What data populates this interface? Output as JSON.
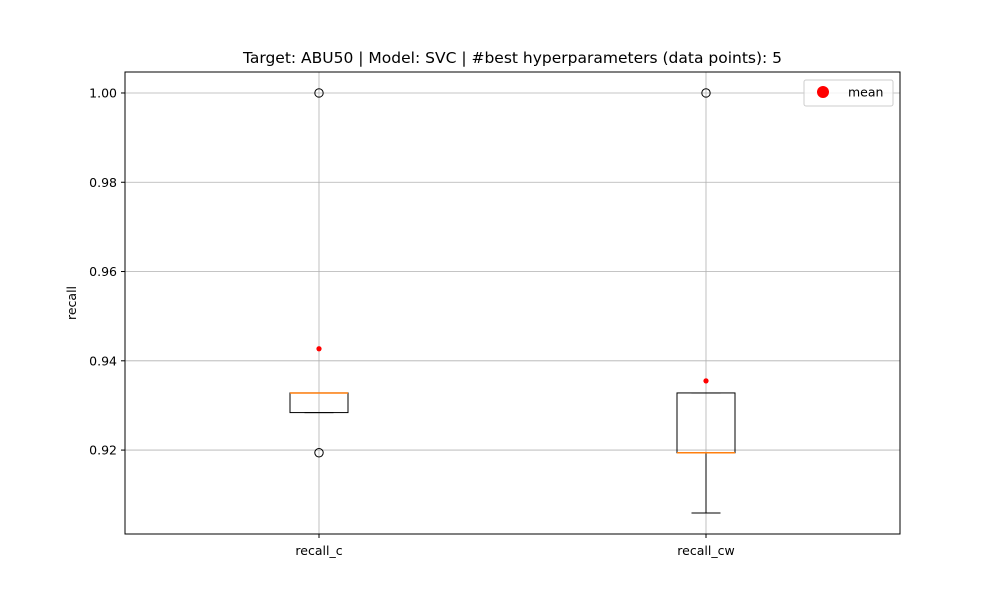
{
  "chart_data": {
    "type": "box",
    "title": "Target: ABU50 | Model: SVC | #best hyperparameters (data points): 5",
    "xlabel": "",
    "ylabel": "recall",
    "ylim": [
      0.9012,
      1.0047
    ],
    "yticks": [
      0.92,
      0.94,
      0.96,
      0.98,
      1.0
    ],
    "ytick_labels": [
      "0.92",
      "0.94",
      "0.96",
      "0.98",
      "1.00"
    ],
    "grid": true,
    "legend": {
      "placement": "top-right",
      "entries": [
        {
          "label": "mean",
          "color": "#ff0000",
          "marker": "circle"
        }
      ]
    },
    "categories": [
      "recall_c",
      "recall_cw"
    ],
    "boxes": [
      {
        "label": "recall_c",
        "q1": 0.9284,
        "median": 0.9328,
        "q3": 0.9328,
        "whisker_low": 0.9284,
        "whisker_high": 0.9328,
        "mean": 0.9427,
        "outliers": [
          1.0,
          0.9194
        ]
      },
      {
        "label": "recall_cw",
        "q1": 0.9194,
        "median": 0.9194,
        "q3": 0.9328,
        "whisker_low": 0.9059,
        "whisker_high": 0.9328,
        "mean": 0.9355,
        "outliers": [
          1.0
        ]
      }
    ],
    "colors": {
      "box": "#000000",
      "median": "#ff7f0e",
      "mean": "#ff0000",
      "grid": "#b0b0b0"
    }
  }
}
